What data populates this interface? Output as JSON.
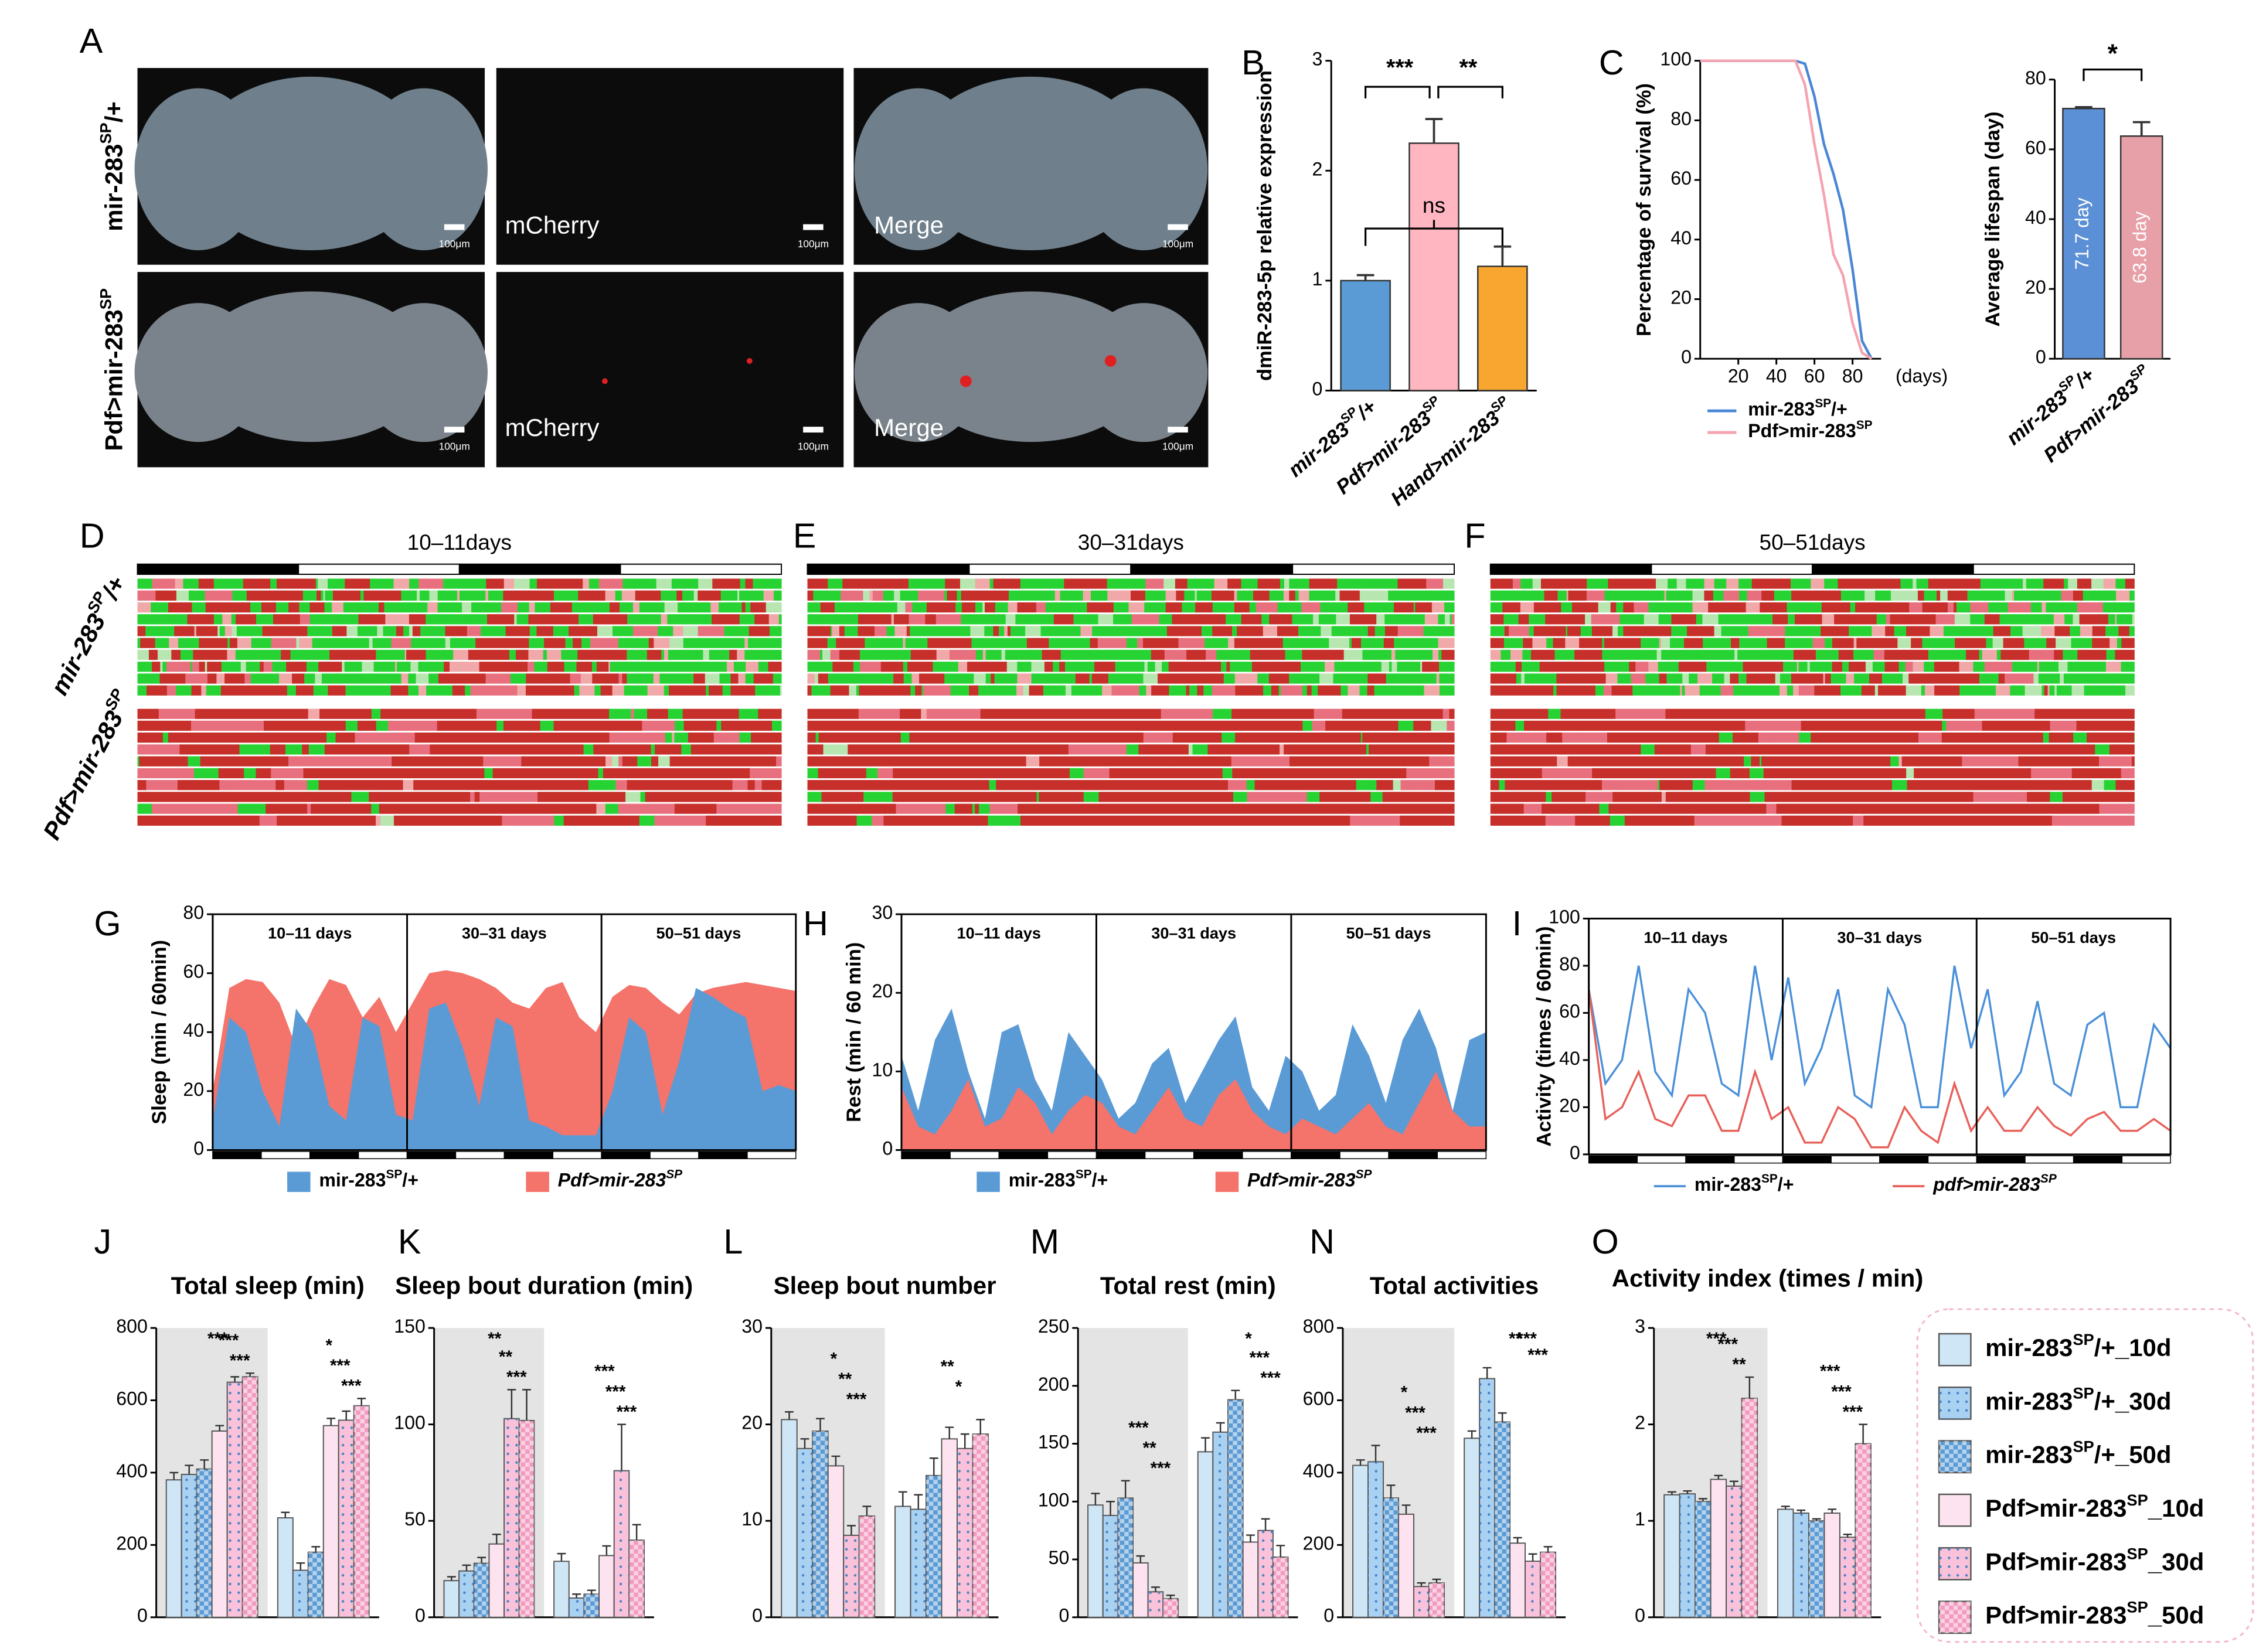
{
  "figure": {
    "panels": [
      "A",
      "B",
      "C",
      "D",
      "E",
      "F",
      "G",
      "H",
      "I",
      "J",
      "K",
      "L",
      "M",
      "N",
      "O"
    ],
    "genotypes": [
      "mir-283SP/+",
      "Pdf>mir-283SP"
    ],
    "image_labels": [
      "mCherry",
      "Merge"
    ],
    "scale_bar": "100μm",
    "actogram_titles": [
      "10–11days",
      "30–31days",
      "50–51days"
    ],
    "legend": [
      {
        "name": "mir-283SP/+_10d",
        "color": "#cfe6f7",
        "pattern": "none"
      },
      {
        "name": "mir-283SP/+_30d",
        "color": "#a9d1f2",
        "pattern": "dots"
      },
      {
        "name": "mir-283SP/+_50d",
        "color": "#5b9bd5",
        "pattern": "checker"
      },
      {
        "name": "Pdf>mir-283SP_10d",
        "color": "#fde3ef",
        "pattern": "none"
      },
      {
        "name": "Pdf>mir-283SP_30d",
        "color": "#f9c2da",
        "pattern": "dots"
      },
      {
        "name": "Pdf>mir-283SP_50d",
        "color": "#f29ac0",
        "pattern": "checker"
      }
    ]
  },
  "chart_data": [
    {
      "type": "bar",
      "ylabel": "dmiR-283-5p relative expression",
      "categories": [
        "mir-283SP/+",
        "Pdf>mir-283SP",
        "Hand>mir-283SP"
      ],
      "values": [
        1.0,
        2.25,
        1.13
      ],
      "errors": [
        0.05,
        0.22,
        0.18
      ],
      "colors": [
        "#5b9bd5",
        "#ffb6c1",
        "#f8a630"
      ],
      "ylim": [
        0,
        3
      ],
      "yticks": [
        0,
        1,
        2,
        3
      ],
      "annotations": [
        "***",
        "**",
        "ns"
      ]
    },
    {
      "type": "line",
      "ylabel": "Percentage of survival (%)",
      "xlabel": "(days)",
      "x": [
        0,
        10,
        20,
        30,
        40,
        50,
        55,
        60,
        65,
        70,
        75,
        80,
        85,
        90
      ],
      "xlim": [
        0,
        95
      ],
      "xticks": [
        20,
        40,
        60,
        80
      ],
      "ylim": [
        0,
        100
      ],
      "yticks": [
        0,
        20,
        40,
        60,
        80,
        100
      ],
      "series": [
        {
          "name": "mir-283SP/+",
          "color": "#4a86d6",
          "values": [
            100,
            100,
            100,
            100,
            100,
            100,
            99,
            88,
            72,
            62,
            50,
            30,
            6,
            0
          ]
        },
        {
          "name": "Pdf>mir-283SP",
          "color": "#f4a3b0",
          "values": [
            100,
            100,
            100,
            100,
            100,
            100,
            92,
            72,
            55,
            35,
            28,
            12,
            2,
            0
          ]
        }
      ]
    },
    {
      "type": "bar",
      "ylabel": "Average lifespan (day)",
      "categories": [
        "mir-283SP/+",
        "Pdf>mir-283SP"
      ],
      "values": [
        71.7,
        63.8
      ],
      "value_labels": [
        "71.7 day",
        "63.8 day"
      ],
      "errors": [
        0.4,
        4
      ],
      "colors": [
        "#5b8fd6",
        "#e8a0a8"
      ],
      "ylim": [
        0,
        80
      ],
      "yticks": [
        0,
        20,
        40,
        60,
        80
      ],
      "annotations": [
        "*"
      ]
    },
    {
      "type": "area",
      "ylabel": "Sleep (min / 60min)",
      "sections": [
        "10–11 days",
        "30–31 days",
        "50–51 days"
      ],
      "ylim": [
        0,
        80
      ],
      "yticks": [
        0,
        20,
        40,
        60,
        80
      ],
      "series": [
        {
          "name": "mir-283SP/+",
          "color": "#5b9bd5",
          "values": [
            10,
            45,
            40,
            20,
            8,
            48,
            40,
            15,
            10,
            45,
            42,
            12,
            10,
            48,
            50,
            35,
            15,
            45,
            42,
            10,
            8,
            5,
            5,
            5,
            20,
            45,
            40,
            12,
            30,
            55,
            52,
            48,
            45,
            20,
            22,
            20
          ]
        },
        {
          "name": "Pdf>mir-283SP",
          "color": "#f4736b",
          "values": [
            20,
            55,
            58,
            57,
            50,
            35,
            48,
            58,
            56,
            45,
            52,
            40,
            50,
            60,
            61,
            60,
            58,
            55,
            50,
            48,
            55,
            57,
            45,
            40,
            52,
            56,
            55,
            50,
            46,
            53,
            55,
            56,
            57,
            56,
            55,
            54
          ]
        }
      ]
    },
    {
      "type": "area",
      "ylabel": "Rest (min / 60 min)",
      "sections": [
        "10–11 days",
        "30–31 days",
        "50–51 days"
      ],
      "ylim": [
        0,
        30
      ],
      "yticks": [
        0,
        10,
        20,
        30
      ],
      "series": [
        {
          "name": "mir-283SP/+",
          "color": "#5b9bd5",
          "values": [
            12,
            5,
            14,
            18,
            10,
            4,
            15,
            16,
            9,
            5,
            15,
            12,
            9,
            4,
            6,
            11,
            13,
            6,
            10,
            14,
            17,
            8,
            5,
            12,
            10,
            5,
            7,
            16,
            12,
            6,
            14,
            18,
            13,
            5,
            14,
            15
          ]
        },
        {
          "name": "Pdf>mir-283SP",
          "color": "#f4736b",
          "values": [
            8,
            3,
            2,
            5,
            9,
            3,
            4,
            8,
            6,
            2,
            5,
            7,
            6,
            3,
            2,
            5,
            8,
            4,
            3,
            7,
            9,
            5,
            3,
            2,
            4,
            3,
            2,
            4,
            6,
            3,
            2,
            6,
            10,
            5,
            3,
            3
          ]
        }
      ]
    },
    {
      "type": "line",
      "ylabel": "Activity (times / 60min)",
      "sections": [
        "10–11 days",
        "30–31 days",
        "50–51 days"
      ],
      "ylim": [
        0,
        100
      ],
      "yticks": [
        0,
        20,
        40,
        60,
        80,
        100
      ],
      "series": [
        {
          "name": "mir-283SP/+",
          "color": "#4a90d9",
          "values": [
            70,
            30,
            40,
            80,
            35,
            25,
            70,
            60,
            30,
            25,
            80,
            40,
            75,
            30,
            45,
            70,
            25,
            20,
            70,
            55,
            20,
            20,
            80,
            45,
            70,
            25,
            35,
            65,
            30,
            25,
            55,
            60,
            20,
            20,
            55,
            45
          ]
        },
        {
          "name": "pdf>mir-283SP",
          "color": "#e8605a",
          "values": [
            70,
            15,
            20,
            35,
            15,
            12,
            25,
            25,
            10,
            10,
            35,
            15,
            20,
            5,
            5,
            20,
            15,
            3,
            3,
            20,
            10,
            5,
            30,
            10,
            20,
            10,
            10,
            20,
            12,
            8,
            15,
            18,
            10,
            10,
            15,
            10
          ]
        }
      ]
    },
    {
      "type": "bar",
      "title": "Total sleep (min)",
      "ylim": [
        0,
        800
      ],
      "yticks": [
        0,
        200,
        400,
        600,
        800
      ],
      "series": [
        {
          "values": [
            380,
            275
          ],
          "errors": [
            20,
            15
          ]
        },
        {
          "values": [
            395,
            130
          ],
          "errors": [
            25,
            20
          ]
        },
        {
          "values": [
            410,
            180
          ],
          "errors": [
            25,
            15
          ]
        },
        {
          "values": [
            515,
            530
          ],
          "errors": [
            15,
            20
          ]
        },
        {
          "values": [
            650,
            545
          ],
          "errors": [
            15,
            25
          ]
        },
        {
          "values": [
            665,
            585
          ],
          "errors": [
            10,
            20
          ]
        }
      ],
      "annotations": [
        "***",
        "***",
        "***",
        "*",
        "***",
        "***"
      ]
    },
    {
      "type": "bar",
      "title": "Sleep bout duration (min)",
      "ylim": [
        0,
        150
      ],
      "yticks": [
        0,
        50,
        100,
        150
      ],
      "series": [
        {
          "values": [
            19,
            29
          ],
          "errors": [
            2,
            4
          ]
        },
        {
          "values": [
            24,
            10
          ],
          "errors": [
            3,
            2
          ]
        },
        {
          "values": [
            28,
            12
          ],
          "errors": [
            3,
            2
          ]
        },
        {
          "values": [
            38,
            32
          ],
          "errors": [
            5,
            5
          ]
        },
        {
          "values": [
            103,
            76
          ],
          "errors": [
            15,
            24
          ]
        },
        {
          "values": [
            102,
            40
          ],
          "errors": [
            16,
            8
          ]
        }
      ],
      "annotations": [
        "**",
        "**",
        "***",
        "***",
        "***",
        "***"
      ]
    },
    {
      "type": "bar",
      "title": "Sleep bout number",
      "ylim": [
        0,
        30
      ],
      "yticks": [
        0,
        10,
        20,
        30
      ],
      "series": [
        {
          "values": [
            20.5,
            11.5
          ],
          "errors": [
            0.8,
            1.5
          ]
        },
        {
          "values": [
            17.5,
            11.2
          ],
          "errors": [
            1,
            1.5
          ]
        },
        {
          "values": [
            19.3,
            14.7
          ],
          "errors": [
            1.3,
            1.8
          ]
        },
        {
          "values": [
            15.7,
            18.5
          ],
          "errors": [
            1,
            1.2
          ]
        },
        {
          "values": [
            8.5,
            17.5
          ],
          "errors": [
            1,
            1.5
          ]
        },
        {
          "values": [
            10.5,
            19
          ],
          "errors": [
            1,
            1.5
          ]
        }
      ],
      "annotations": [
        "*",
        "**",
        "***",
        "**",
        "*"
      ]
    },
    {
      "type": "bar",
      "title": "Total rest (min)",
      "ylim": [
        0,
        250
      ],
      "yticks": [
        0,
        50,
        100,
        150,
        200,
        250
      ],
      "series": [
        {
          "values": [
            97,
            143
          ],
          "errors": [
            10,
            12
          ]
        },
        {
          "values": [
            88,
            160
          ],
          "errors": [
            12,
            8
          ]
        },
        {
          "values": [
            103,
            188
          ],
          "errors": [
            15,
            8
          ]
        },
        {
          "values": [
            47,
            65
          ],
          "errors": [
            6,
            6
          ]
        },
        {
          "values": [
            22,
            75
          ],
          "errors": [
            4,
            10
          ]
        },
        {
          "values": [
            16,
            52
          ],
          "errors": [
            3,
            10
          ]
        }
      ],
      "annotations": [
        "***",
        "**",
        "***",
        "*",
        "***",
        "***"
      ]
    },
    {
      "type": "bar",
      "title": "Total activities",
      "ylim": [
        0,
        800
      ],
      "yticks": [
        0,
        200,
        400,
        600,
        800
      ],
      "series": [
        {
          "values": [
            420,
            495
          ],
          "errors": [
            15,
            20
          ]
        },
        {
          "values": [
            430,
            660
          ],
          "errors": [
            45,
            30
          ]
        },
        {
          "values": [
            330,
            540
          ],
          "errors": [
            35,
            25
          ]
        },
        {
          "values": [
            285,
            205
          ],
          "errors": [
            25,
            15
          ]
        },
        {
          "values": [
            85,
            155
          ],
          "errors": [
            10,
            20
          ]
        },
        {
          "values": [
            95,
            180
          ],
          "errors": [
            10,
            15
          ]
        }
      ],
      "annotations": [
        "*",
        "***",
        "***",
        "**",
        "***",
        "***"
      ]
    },
    {
      "type": "bar",
      "title": "Activity index  (times / min)",
      "ylim": [
        0,
        3
      ],
      "yticks": [
        0,
        1,
        2,
        3
      ],
      "series": [
        {
          "values": [
            1.27,
            1.12
          ],
          "errors": [
            0.03,
            0.03
          ]
        },
        {
          "values": [
            1.28,
            1.08
          ],
          "errors": [
            0.03,
            0.03
          ]
        },
        {
          "values": [
            1.2,
            1.0
          ],
          "errors": [
            0.03,
            0.02
          ]
        },
        {
          "values": [
            1.43,
            1.08
          ],
          "errors": [
            0.04,
            0.04
          ]
        },
        {
          "values": [
            1.36,
            0.83
          ],
          "errors": [
            0.05,
            0.03
          ]
        },
        {
          "values": [
            2.27,
            1.8
          ],
          "errors": [
            0.22,
            0.2
          ]
        }
      ],
      "annotations": [
        "***",
        "***",
        "**",
        "***",
        "***",
        "***"
      ]
    }
  ]
}
